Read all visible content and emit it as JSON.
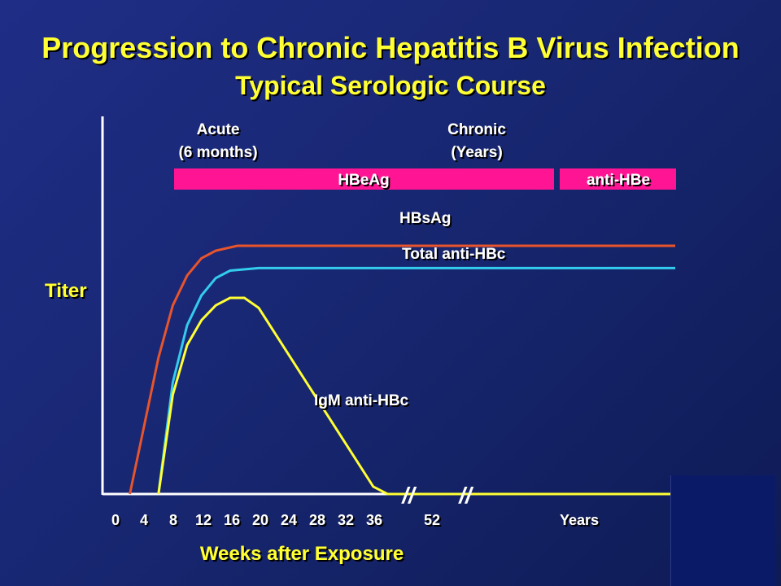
{
  "title": "Progression to Chronic Hepatitis B Virus Infection",
  "subtitle": "Typical Serologic Course",
  "colors": {
    "title": "#ffff33",
    "hbsag": "#e8542b",
    "anti_hbc": "#33ccee",
    "igm": "#ffff33",
    "phase_bar": "#ff1493",
    "axis": "#ffffff",
    "background": "#1b2a7a"
  },
  "phase_labels": {
    "acute_line1": "Acute",
    "acute_line2": "(6 months)",
    "chronic_line1": "Chronic",
    "chronic_line2": "(Years)"
  },
  "bars": {
    "hbeag": "HBeAg",
    "anti_hbe": "anti-HBe"
  },
  "chart_data": {
    "type": "line",
    "title": "Progression to Chronic Hepatitis B Virus Infection",
    "subtitle": "Typical Serologic Course",
    "xlabel": "Weeks after Exposure",
    "ylabel": "Titer",
    "x_tick_labels": [
      "0",
      "4",
      "8",
      "12",
      "16",
      "20",
      "24",
      "28",
      "32",
      "36",
      "52",
      "Years"
    ],
    "axis_breaks": [
      "//",
      "//"
    ],
    "xlim": [
      0,
      100
    ],
    "ylim": [
      0,
      10
    ],
    "grid": false,
    "series": [
      {
        "name": "HBsAg",
        "color": "#e8542b",
        "points": [
          [
            2,
            0
          ],
          [
            6,
            5.5
          ],
          [
            8,
            7.6
          ],
          [
            10,
            8.8
          ],
          [
            12,
            9.5
          ],
          [
            14,
            9.8
          ],
          [
            17,
            10
          ],
          [
            100,
            10
          ]
        ]
      },
      {
        "name": "Total anti-HBc",
        "color": "#33ccee",
        "points": [
          [
            6,
            0
          ],
          [
            8,
            4.5
          ],
          [
            10,
            6.8
          ],
          [
            12,
            8.0
          ],
          [
            14,
            8.7
          ],
          [
            16,
            9.0
          ],
          [
            20,
            9.1
          ],
          [
            100,
            9.1
          ]
        ]
      },
      {
        "name": "IgM anti-HBc",
        "color": "#ffff33",
        "points": [
          [
            6,
            0
          ],
          [
            8,
            4.0
          ],
          [
            10,
            6.0
          ],
          [
            12,
            7.0
          ],
          [
            14,
            7.6
          ],
          [
            16,
            7.9
          ],
          [
            18,
            7.9
          ],
          [
            20,
            7.5
          ],
          [
            36,
            0.3
          ],
          [
            38,
            0
          ],
          [
            100,
            0
          ]
        ]
      }
    ],
    "label_positions": {
      "HBsAg": [
        41,
        10.6
      ],
      "Total anti-HBc": [
        50,
        9.5
      ],
      "IgM anti-HBc": [
        35,
        3.4
      ]
    },
    "bars": [
      {
        "name": "HBeAg",
        "x_start": 8,
        "x_end": 63
      },
      {
        "name": "anti-HBe",
        "x_start": 64,
        "x_end": 100
      }
    ]
  }
}
